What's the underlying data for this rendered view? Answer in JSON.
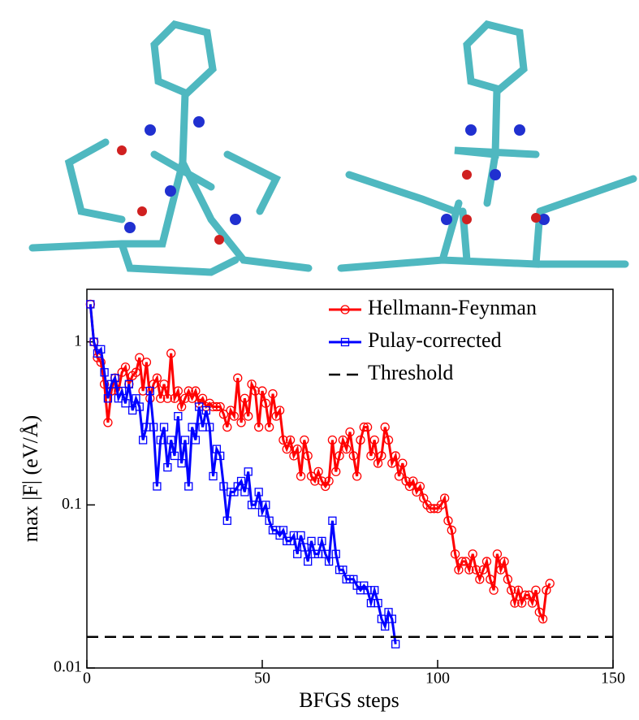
{
  "chart_data": {
    "type": "line",
    "xlabel": "BFGS steps",
    "ylabel": "max |F| (eV/Å)",
    "xlim": [
      0,
      150
    ],
    "xticks": [
      0,
      50,
      100,
      150
    ],
    "ylim": [
      0.01,
      2.1
    ],
    "yticks": [
      0.01,
      0.1,
      1
    ],
    "yscale": "log",
    "legend": "upper right",
    "series": [
      {
        "name": "Hellmann-Feynman",
        "color": "#ff0000",
        "marker": "circle",
        "x": [
          1,
          2,
          3,
          4,
          5,
          6,
          7,
          8,
          9,
          10,
          11,
          12,
          13,
          14,
          15,
          16,
          17,
          18,
          19,
          20,
          21,
          22,
          23,
          24,
          25,
          26,
          27,
          28,
          29,
          30,
          31,
          32,
          33,
          34,
          35,
          36,
          37,
          38,
          39,
          40,
          41,
          42,
          43,
          44,
          45,
          46,
          47,
          48,
          49,
          50,
          51,
          52,
          53,
          54,
          55,
          56,
          57,
          58,
          59,
          60,
          61,
          62,
          63,
          64,
          65,
          66,
          67,
          68,
          69,
          70,
          71,
          72,
          73,
          74,
          75,
          76,
          77,
          78,
          79,
          80,
          81,
          82,
          83,
          84,
          85,
          86,
          87,
          88,
          89,
          90,
          91,
          92,
          93,
          94,
          95,
          96,
          97,
          98,
          99,
          100,
          101,
          102,
          103,
          104,
          105,
          106,
          107,
          108,
          109,
          110,
          111,
          112,
          113,
          114,
          115,
          116,
          117,
          118,
          119,
          120,
          121,
          122,
          123,
          124,
          125,
          126,
          127,
          128,
          129,
          130,
          131,
          132
        ],
        "values": [
          1.7,
          1.0,
          0.8,
          0.75,
          0.55,
          0.32,
          0.5,
          0.6,
          0.5,
          0.65,
          0.7,
          0.55,
          0.62,
          0.65,
          0.8,
          0.5,
          0.75,
          0.45,
          0.55,
          0.6,
          0.45,
          0.55,
          0.45,
          0.85,
          0.45,
          0.5,
          0.4,
          0.45,
          0.5,
          0.45,
          0.5,
          0.42,
          0.45,
          0.4,
          0.42,
          0.4,
          0.4,
          0.4,
          0.36,
          0.3,
          0.38,
          0.35,
          0.6,
          0.32,
          0.45,
          0.35,
          0.55,
          0.5,
          0.3,
          0.5,
          0.42,
          0.3,
          0.48,
          0.35,
          0.38,
          0.25,
          0.22,
          0.25,
          0.2,
          0.22,
          0.15,
          0.25,
          0.2,
          0.15,
          0.14,
          0.16,
          0.14,
          0.13,
          0.14,
          0.25,
          0.16,
          0.2,
          0.25,
          0.22,
          0.28,
          0.2,
          0.15,
          0.25,
          0.3,
          0.3,
          0.2,
          0.25,
          0.18,
          0.2,
          0.3,
          0.25,
          0.18,
          0.2,
          0.15,
          0.18,
          0.14,
          0.13,
          0.14,
          0.12,
          0.13,
          0.11,
          0.1,
          0.095,
          0.095,
          0.095,
          0.1,
          0.11,
          0.08,
          0.07,
          0.05,
          0.04,
          0.045,
          0.045,
          0.04,
          0.05,
          0.04,
          0.035,
          0.04,
          0.045,
          0.035,
          0.03,
          0.05,
          0.04,
          0.045,
          0.035,
          0.03,
          0.025,
          0.03,
          0.025,
          0.028,
          0.028,
          0.025,
          0.03,
          0.022,
          0.02,
          0.03,
          0.033
        ]
      },
      {
        "name": "Pulay-corrected",
        "color": "#0000ff",
        "marker": "square",
        "x": [
          1,
          2,
          3,
          4,
          5,
          6,
          7,
          8,
          9,
          10,
          11,
          12,
          13,
          14,
          15,
          16,
          17,
          18,
          19,
          20,
          21,
          22,
          23,
          24,
          25,
          26,
          27,
          28,
          29,
          30,
          31,
          32,
          33,
          34,
          35,
          36,
          37,
          38,
          39,
          40,
          41,
          42,
          43,
          44,
          45,
          46,
          47,
          48,
          49,
          50,
          51,
          52,
          53,
          54,
          55,
          56,
          57,
          58,
          59,
          60,
          61,
          62,
          63,
          64,
          65,
          66,
          67,
          68,
          69,
          70,
          71,
          72,
          73,
          74,
          75,
          76,
          77,
          78,
          79,
          80,
          81,
          82,
          83,
          84,
          85,
          86,
          87,
          88
        ],
        "values": [
          1.7,
          1.0,
          0.85,
          0.9,
          0.65,
          0.45,
          0.55,
          0.6,
          0.45,
          0.5,
          0.42,
          0.55,
          0.38,
          0.45,
          0.4,
          0.25,
          0.3,
          0.5,
          0.3,
          0.13,
          0.25,
          0.3,
          0.17,
          0.25,
          0.2,
          0.35,
          0.18,
          0.25,
          0.13,
          0.3,
          0.25,
          0.4,
          0.3,
          0.38,
          0.3,
          0.15,
          0.22,
          0.2,
          0.13,
          0.08,
          0.12,
          0.12,
          0.13,
          0.14,
          0.12,
          0.16,
          0.1,
          0.1,
          0.12,
          0.09,
          0.1,
          0.08,
          0.07,
          0.07,
          0.065,
          0.07,
          0.06,
          0.06,
          0.065,
          0.05,
          0.065,
          0.055,
          0.045,
          0.06,
          0.05,
          0.05,
          0.06,
          0.05,
          0.045,
          0.08,
          0.05,
          0.04,
          0.04,
          0.035,
          0.035,
          0.035,
          0.032,
          0.03,
          0.032,
          0.03,
          0.025,
          0.03,
          0.025,
          0.02,
          0.018,
          0.022,
          0.02,
          0.014
        ]
      },
      {
        "name": "Threshold",
        "color": "#000000",
        "dashed": true,
        "x": [
          0,
          150
        ],
        "values": [
          0.0155,
          0.0155
        ]
      }
    ]
  }
}
